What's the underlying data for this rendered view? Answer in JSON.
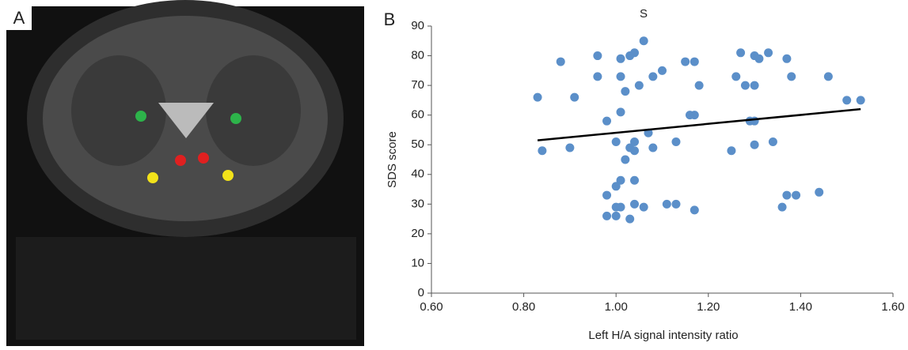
{
  "panels": {
    "a_label": "A",
    "b_label": "B"
  },
  "chart_data": {
    "type": "scatter",
    "title": "S",
    "x_label": "Left H/A signal intensity ratio",
    "y_label": "SDS score",
    "color": "#5b8fc9",
    "x": [
      0.83,
      0.88,
      0.91,
      0.84,
      0.9,
      0.96,
      0.96,
      1.01,
      1.01,
      1.02,
      1.03,
      1.04,
      1.06,
      1.05,
      1.08,
      1.1,
      0.98,
      1.01,
      1.04,
      1.03,
      1.04,
      1.0,
      1.02,
      1.07,
      1.08,
      1.13,
      1.15,
      1.17,
      1.16,
      1.17,
      1.18,
      1.27,
      1.3,
      1.31,
      1.33,
      1.37,
      1.26,
      1.28,
      1.3,
      1.29,
      1.3,
      1.3,
      1.34,
      1.25,
      1.38,
      1.46,
      1.5,
      1.53,
      1.01,
      1.0,
      0.98,
      1.04,
      1.0,
      1.01,
      1.04,
      0.98,
      1.0,
      1.03,
      1.06,
      1.11,
      1.13,
      1.17,
      1.36,
      1.37,
      1.39,
      1.44
    ],
    "values": [
      66,
      78,
      66,
      48,
      49,
      80,
      73,
      79,
      73,
      68,
      80,
      81,
      85,
      70,
      73,
      75,
      58,
      61,
      51,
      49,
      48,
      51,
      45,
      54,
      49,
      51,
      78,
      78,
      60,
      60,
      70,
      81,
      80,
      79,
      81,
      79,
      73,
      70,
      70,
      58,
      58,
      50,
      51,
      48,
      73,
      73,
      65,
      65,
      38,
      36,
      33,
      38,
      29,
      29,
      30,
      26,
      26,
      25,
      29,
      30,
      30,
      28,
      29,
      33,
      33,
      34
    ],
    "trendline": {
      "x": [
        0.83,
        1.53
      ],
      "values": [
        51.5,
        62
      ],
      "color": "#000000"
    },
    "xlim": [
      0.6,
      1.6
    ],
    "xticks": [
      {
        "value": 0.6,
        "label": "0.60"
      },
      {
        "value": 0.8,
        "label": "0.80"
      },
      {
        "value": 1.0,
        "label": "1.00"
      },
      {
        "value": 1.2,
        "label": "1.20"
      },
      {
        "value": 1.4,
        "label": "1.40"
      },
      {
        "value": 1.6,
        "label": "1.60"
      }
    ],
    "ylim": [
      0,
      90
    ],
    "yticks": [
      0,
      10,
      20,
      30,
      40,
      50,
      60,
      70,
      80,
      90
    ]
  }
}
